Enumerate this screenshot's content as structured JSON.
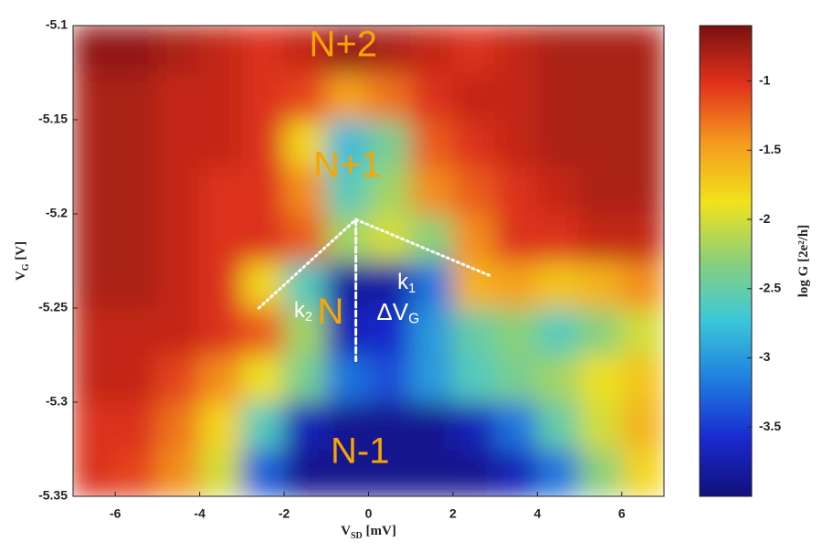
{
  "chart_data": {
    "type": "heatmap",
    "xbins": [
      -7,
      -6,
      -5,
      -4,
      -3,
      -2,
      -1,
      0,
      1,
      2,
      3,
      4,
      5,
      6,
      7
    ],
    "ybins": [
      -5.35,
      -5.325,
      -5.3,
      -5.275,
      -5.25,
      -5.225,
      -5.2,
      -5.175,
      -5.15,
      -5.125,
      -5.1
    ],
    "z": [
      [
        -1.0,
        -1.1,
        -1.4,
        -2.0,
        -3.3,
        -3.9,
        -3.9,
        -3.9,
        -3.9,
        -3.9,
        -3.7,
        -3.2,
        -2.3,
        -1.8
      ],
      [
        -1.0,
        -1.0,
        -1.3,
        -1.8,
        -2.6,
        -3.7,
        -3.9,
        -3.9,
        -3.9,
        -3.7,
        -3.2,
        -2.5,
        -2.0,
        -1.6
      ],
      [
        -0.9,
        -0.9,
        -1.1,
        -1.4,
        -1.9,
        -2.4,
        -3.2,
        -3.4,
        -3.0,
        -2.6,
        -2.4,
        -2.2,
        -1.9,
        -1.7
      ],
      [
        -0.9,
        -0.9,
        -0.9,
        -1.0,
        -1.2,
        -2.2,
        -3.7,
        -3.6,
        -3.0,
        -2.5,
        -2.3,
        -2.6,
        -2.3,
        -2.0
      ],
      [
        -0.8,
        -0.8,
        -0.9,
        -1.0,
        -1.8,
        -2.6,
        -3.8,
        -3.8,
        -3.2,
        -1.6,
        -1.5,
        -1.7,
        -1.6,
        -1.4
      ],
      [
        -0.8,
        -0.8,
        -0.9,
        -1.0,
        -1.0,
        -1.2,
        -2.2,
        -2.0,
        -2.3,
        -1.4,
        -1.0,
        -1.0,
        -0.9,
        -0.9
      ],
      [
        -0.8,
        -0.8,
        -0.9,
        -1.0,
        -1.0,
        -1.4,
        -2.6,
        -2.2,
        -1.4,
        -1.2,
        -1.0,
        -0.9,
        -0.8,
        -0.8
      ],
      [
        -0.8,
        -0.8,
        -0.9,
        -0.9,
        -1.0,
        -1.8,
        -2.8,
        -2.4,
        -1.2,
        -1.0,
        -0.9,
        -0.8,
        -0.8,
        -0.8
      ],
      [
        -0.8,
        -0.8,
        -0.9,
        -0.9,
        -1.0,
        -1.1,
        -1.5,
        -1.3,
        -1.0,
        -0.9,
        -0.9,
        -0.8,
        -0.8,
        -0.8
      ],
      [
        -0.7,
        -0.7,
        -0.8,
        -0.9,
        -1.0,
        -0.9,
        -0.7,
        -0.8,
        -0.9,
        -1.0,
        -0.9,
        -0.8,
        -0.8,
        -0.8
      ]
    ],
    "xlim": [
      -7,
      7
    ],
    "ylim": [
      -5.35,
      -5.1
    ],
    "xticks": [
      -6,
      -4,
      -2,
      0,
      2,
      4,
      6
    ],
    "yticks": [
      -5.35,
      -5.3,
      -5.25,
      -5.2,
      -5.15,
      -5.1
    ],
    "clim": [
      -4,
      -0.6
    ],
    "cticks": [
      -3.5,
      -3,
      -2.5,
      -2,
      -1.5,
      -1
    ],
    "colorscale": [
      "#10107a",
      "#1a2ad0",
      "#1f7fe0",
      "#3cc8d8",
      "#8ad07a",
      "#f2e21c",
      "#f59a1e",
      "#e2321c",
      "#7a1010"
    ],
    "x_label": {
      "main": "V",
      "sub": "SD",
      "unit": " [mV]"
    },
    "y_label": {
      "main": "V",
      "sub": "G",
      "unit": " [V]"
    },
    "colorbar_label": "log G [2e²/h]",
    "annotations": [
      {
        "text": "N+2",
        "x": -0.6,
        "y": -5.111,
        "color": "#f7a600",
        "size": 40
      },
      {
        "text": "N+1",
        "x": -0.5,
        "y": -5.175,
        "color": "#f7a600",
        "size": 40
      },
      {
        "text": "N",
        "x": -0.9,
        "y": -5.253,
        "color": "#f7a600",
        "size": 40
      },
      {
        "text": "N-1",
        "x": -0.2,
        "y": -5.327,
        "color": "#f7a600",
        "size": 40
      },
      {
        "text": "ΔV",
        "sub": "G",
        "x": 0.7,
        "y": -5.253,
        "color": "#ffffff",
        "size": 26
      },
      {
        "text": "k",
        "sub": "1",
        "x": 0.9,
        "y": -5.237,
        "color": "#ffffff",
        "size": 24
      },
      {
        "text": "k",
        "sub": "2",
        "x": -1.55,
        "y": -5.252,
        "color": "#ffffff",
        "size": 24
      }
    ],
    "lines": [
      {
        "x": [
          -2.6,
          -0.3,
          2.9
        ],
        "y": [
          -5.25,
          -5.203,
          -5.233
        ],
        "style": "dotted"
      },
      {
        "x": [
          -0.3,
          -0.3
        ],
        "y": [
          -5.203,
          -5.278
        ],
        "style": "dashed"
      }
    ]
  }
}
